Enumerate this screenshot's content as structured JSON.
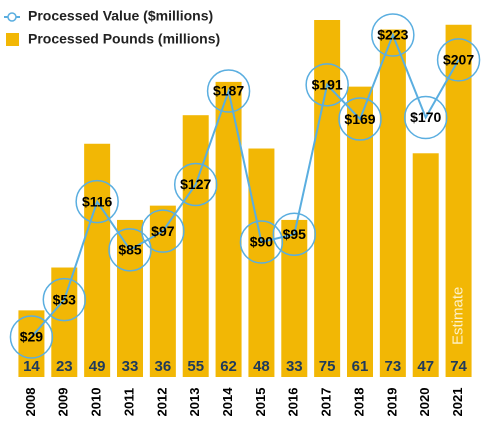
{
  "chart_data": {
    "type": "combo",
    "categories": [
      "2008",
      "2009",
      "2010",
      "2011",
      "2012",
      "2013",
      "2014",
      "2015",
      "2016",
      "2017",
      "2018",
      "2019",
      "2020",
      "2021"
    ],
    "series": [
      {
        "name": "Processed Value ($millions)",
        "type": "line",
        "axis": "y2",
        "color": "#5aaee0",
        "values": [
          29,
          53,
          116,
          85,
          97,
          127,
          187,
          90,
          95,
          191,
          169,
          223,
          170,
          207
        ],
        "value_labels": [
          "$29",
          "$53",
          "$116",
          "$85",
          "$97",
          "$127",
          "$187",
          "$90",
          "$95",
          "$191",
          "$169",
          "$223",
          "$170",
          "$207"
        ]
      },
      {
        "name": "Processed Pounds (millions)",
        "type": "bar",
        "color": "#f2b705",
        "values": [
          14,
          23,
          49,
          33,
          36,
          55,
          62,
          48,
          33,
          75,
          61,
          73,
          47,
          74
        ]
      }
    ],
    "annotation": "Estimate"
  }
}
